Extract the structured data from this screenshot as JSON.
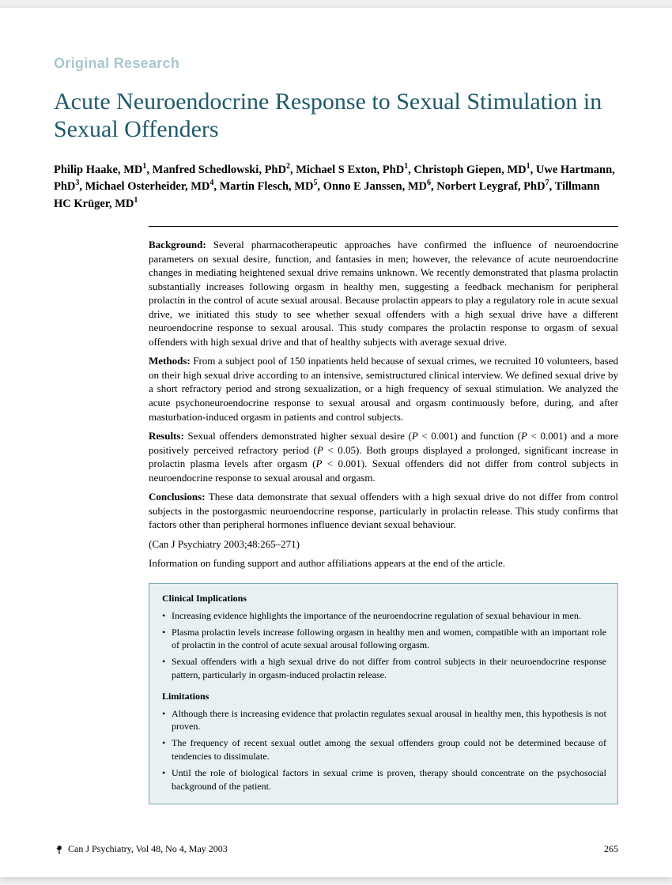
{
  "sectionLabel": "Original Research",
  "title": "Acute Neuroendocrine Response to Sexual Stimulation in Sexual Offenders",
  "authorsHtml": "Philip Haake, MD<sup>1</sup>, Manfred Schedlowski, PhD<sup>2</sup>, Michael S Exton, PhD<sup>1</sup>, Christoph Giepen, MD<sup>1</sup>, Uwe Hartmann, PhD<sup>3</sup>, Michael Osterheider, MD<sup>4</sup>, Martin Flesch, MD<sup>5</sup>, Onno E Janssen, MD<sup>6</sup>, Norbert Leygraf, PhD<sup>7</sup>, Tillmann HC Krüger, MD<sup>1</sup>",
  "abstract": {
    "background": {
      "label": "Background:",
      "text": "Several pharmacotherapeutic approaches have confirmed the influence of neuroendocrine parameters on sexual desire, function, and fantasies in men; however, the relevance of acute neuroendocrine changes in mediating heightened sexual drive remains unknown. We recently demonstrated that plasma prolactin substantially increases following orgasm in healthy men, suggesting a feedback mechanism for peripheral prolactin in the control of acute sexual arousal. Because prolactin appears to play a regulatory role in acute sexual drive, we initiated this study to see whether sexual offenders with a high sexual drive have a different neuroendocrine response to sexual arousal. This study compares the prolactin response to orgasm of sexual offenders with high sexual drive and that of healthy subjects with average sexual drive."
    },
    "methods": {
      "label": "Methods:",
      "text": "From a subject pool of 150 inpatients held because of sexual crimes, we recruited 10 volunteers, based on their high sexual drive according to an intensive, semistructured clinical interview. We defined sexual drive by a short refractory period and strong sexualization, or a high frequency of sexual stimulation. We analyzed the acute psychoneuroendocrine response to sexual arousal and orgasm continuously before, during, and after masturbation-induced orgasm in patients and control subjects."
    },
    "results": {
      "label": "Results:",
      "textHtml": "Sexual offenders demonstrated higher sexual desire (<span class='italic'>P</span> &lt; 0.001) and function (<span class='italic'>P</span> &lt; 0.001) and a more positively perceived refractory period (<span class='italic'>P</span> &lt; 0.05). Both groups displayed a prolonged, significant increase in prolactin plasma levels after orgasm (<span class='italic'>P</span> &lt; 0.001). Sexual offenders did not differ from control subjects in neuroendocrine response to sexual arousal and orgasm."
    },
    "conclusions": {
      "label": "Conclusions:",
      "text": "These data demonstrate that sexual offenders with a high sexual drive do not differ from control subjects in the postorgasmic neuroendocrine response, particularly in prolactin release. This study confirms that factors other than peripheral hormones influence deviant sexual behaviour."
    },
    "citation": "(Can J Psychiatry 2003;48:265–271)",
    "fundingNote": "Information on funding support and author affiliations appears at the end of the article."
  },
  "box": {
    "implicationsHeading": "Clinical Implications",
    "implications": [
      "Increasing evidence highlights the importance of the neuroendocrine regulation of sexual behaviour in men.",
      "Plasma prolactin levels increase following orgasm in healthy men and women, compatible with an important role of prolactin in the control of acute sexual arousal following orgasm.",
      "Sexual offenders with a high sexual drive do not differ from control subjects in their neuroendocrine response pattern, particularly in orgasm-induced prolactin release."
    ],
    "limitationsHeading": "Limitations",
    "limitations": [
      "Although there is increasing evidence that prolactin regulates sexual arousal in healthy men, this hypothesis is not proven.",
      "The frequency of recent sexual outlet among the sexual offenders group could not be determined because of tendencies to dissimulate.",
      "Until the role of biological factors in sexual crime is proven, therapy should concentrate on the psychosocial background of the patient."
    ]
  },
  "footer": {
    "journal": "Can J Psychiatry, Vol 48, No 4, May 2003",
    "pageNumber": "265"
  },
  "colors": {
    "sectionLabel": "#a9c7cc",
    "title": "#1f5a6b",
    "boxBorder": "#7fa8b0",
    "boxBg": "#e8f0f1"
  }
}
